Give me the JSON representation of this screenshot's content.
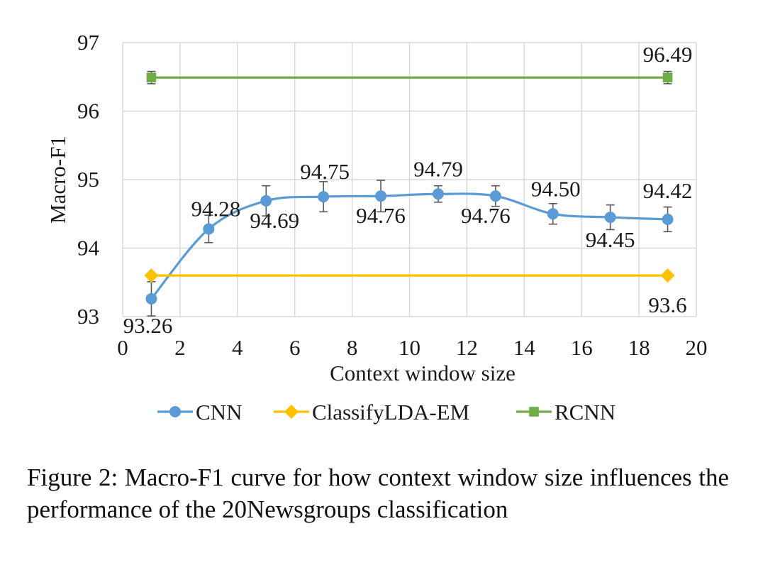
{
  "chart_data": {
    "type": "line",
    "xlabel": "Context window size",
    "ylabel": "Macro-F1",
    "xlim": [
      0,
      20
    ],
    "ylim": [
      93,
      97
    ],
    "xticks": [
      "0",
      "2",
      "4",
      "6",
      "8",
      "10",
      "12",
      "14",
      "16",
      "18",
      "20"
    ],
    "yticks": [
      "93",
      "94",
      "95",
      "96",
      "97"
    ],
    "grid": true,
    "legend_position": "bottom",
    "series": [
      {
        "name": "CNN",
        "color": "#5B9BD5",
        "marker": "circle",
        "smooth": true,
        "x": [
          1,
          3,
          5,
          7,
          9,
          11,
          13,
          15,
          17,
          19
        ],
        "y": [
          93.26,
          94.28,
          94.69,
          94.75,
          94.76,
          94.79,
          94.76,
          94.5,
          94.45,
          94.42
        ],
        "error": [
          0.25,
          0.2,
          0.22,
          0.22,
          0.23,
          0.12,
          0.15,
          0.15,
          0.18,
          0.18
        ],
        "labels": [
          "93.26",
          "94.28",
          "94.69",
          "94.75",
          "94.76",
          "94.79",
          "94.76",
          "94.50",
          "94.45",
          "94.42"
        ]
      },
      {
        "name": "ClassifyLDA-EM",
        "color": "#FFC000",
        "marker": "diamond",
        "smooth": false,
        "x": [
          1,
          19
        ],
        "y": [
          93.6,
          93.6
        ],
        "error": [
          0,
          0
        ],
        "labels": [
          "",
          "93.6"
        ]
      },
      {
        "name": "RCNN",
        "color": "#70AD47",
        "marker": "square",
        "smooth": false,
        "x": [
          1,
          19
        ],
        "y": [
          96.49,
          96.49
        ],
        "error": [
          0.09,
          0.09
        ],
        "labels": [
          "",
          "96.49"
        ]
      }
    ]
  },
  "caption": "Figure 2: Macro-F1 curve for how context window size influences the performance of the 20Newsgroups classification"
}
